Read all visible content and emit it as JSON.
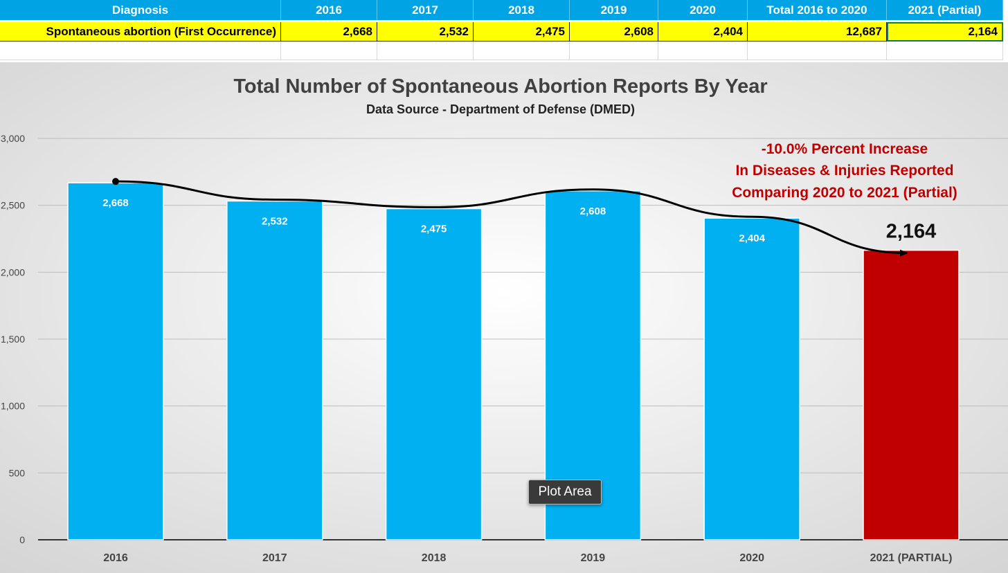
{
  "sheet": {
    "headers": [
      "Diagnosis",
      "2016",
      "2017",
      "2018",
      "2019",
      "2020",
      "Total 2016 to 2020",
      "2021 (Partial)"
    ],
    "row": [
      "Spontaneous abortion (First Occurrence)",
      "2,668",
      "2,532",
      "2,475",
      "2,608",
      "2,404",
      "12,687",
      "2,164"
    ]
  },
  "chart_data": {
    "type": "bar",
    "title": "Total Number of Spontaneous Abortion Reports By Year",
    "subtitle": "Data Source - Department of Defense (DMED)",
    "categories": [
      "2016",
      "2017",
      "2018",
      "2019",
      "2020",
      "2021 (PARTIAL)"
    ],
    "values": [
      2668,
      2532,
      2475,
      2608,
      2404,
      2164
    ],
    "data_labels": [
      "2,668",
      "2,532",
      "2,475",
      "2,608",
      "2,404",
      "2,164"
    ],
    "yticks": [
      "0",
      "500",
      "1,000",
      "1,500",
      "2,000",
      "2,500",
      "3,000"
    ],
    "ylim": [
      0,
      3000
    ],
    "grid": true,
    "colors": {
      "bar": "#00b0f0",
      "highlight": "#c00000",
      "annotation": "#c00000"
    },
    "annotation": [
      "-10.0% Percent Increase",
      "In Diseases & Injuries Reported",
      "Comparing 2020 to 2021 (Partial)"
    ],
    "trend_arrow": true
  },
  "tooltip": "Plot Area"
}
